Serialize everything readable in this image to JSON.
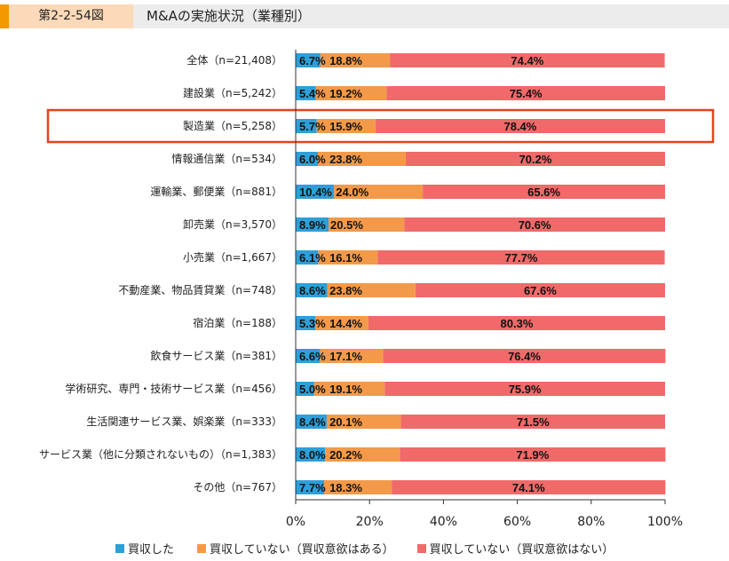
{
  "header": {
    "figure_no": "第2-2-54図",
    "title": "M&Aの実施状況（業種別）"
  },
  "colors": {
    "acquired": "#2e9fd8",
    "not_interested_yes": "#f39a4a",
    "not_interested_no": "#f06a6a",
    "highlight": "#e8411e"
  },
  "chart_data": {
    "type": "bar",
    "orientation": "horizontal",
    "stacked": true,
    "xlim": [
      0,
      100
    ],
    "xticks": [
      "0%",
      "20%",
      "40%",
      "60%",
      "80%",
      "100%"
    ],
    "categories": [
      "全体（n=21,408）",
      "建設業（n=5,242）",
      "製造業（n=5,258）",
      "情報通信業（n=534）",
      "運輸業、郵便業（n=881）",
      "卸売業（n=3,570）",
      "小売業（n=1,667）",
      "不動産業、物品賃貸業（n=748）",
      "宿泊業（n=188）",
      "飲食サービス業（n=381）",
      "学術研究、専門・技術サービス業（n=456）",
      "生活関連サービス業、娯楽業（n=333）",
      "サービス業（他に分類されないもの）（n=1,383）",
      "その他（n=767）"
    ],
    "series": [
      {
        "name": "買収した",
        "values": [
          6.7,
          5.4,
          5.7,
          6.0,
          10.4,
          8.9,
          6.1,
          8.6,
          5.3,
          6.6,
          5.0,
          8.4,
          8.0,
          7.7
        ]
      },
      {
        "name": "買収していない（買収意欲はある）",
        "values": [
          18.8,
          19.2,
          15.9,
          23.8,
          24.0,
          20.5,
          16.1,
          23.8,
          14.4,
          17.1,
          19.1,
          20.1,
          20.2,
          18.3
        ]
      },
      {
        "name": "買収していない（買収意欲はない）",
        "values": [
          74.4,
          75.4,
          78.4,
          70.2,
          65.6,
          70.6,
          77.7,
          67.6,
          80.3,
          76.4,
          75.9,
          71.5,
          71.9,
          74.1
        ]
      }
    ],
    "highlighted_category": "製造業（n=5,258）",
    "legend_position": "bottom"
  }
}
